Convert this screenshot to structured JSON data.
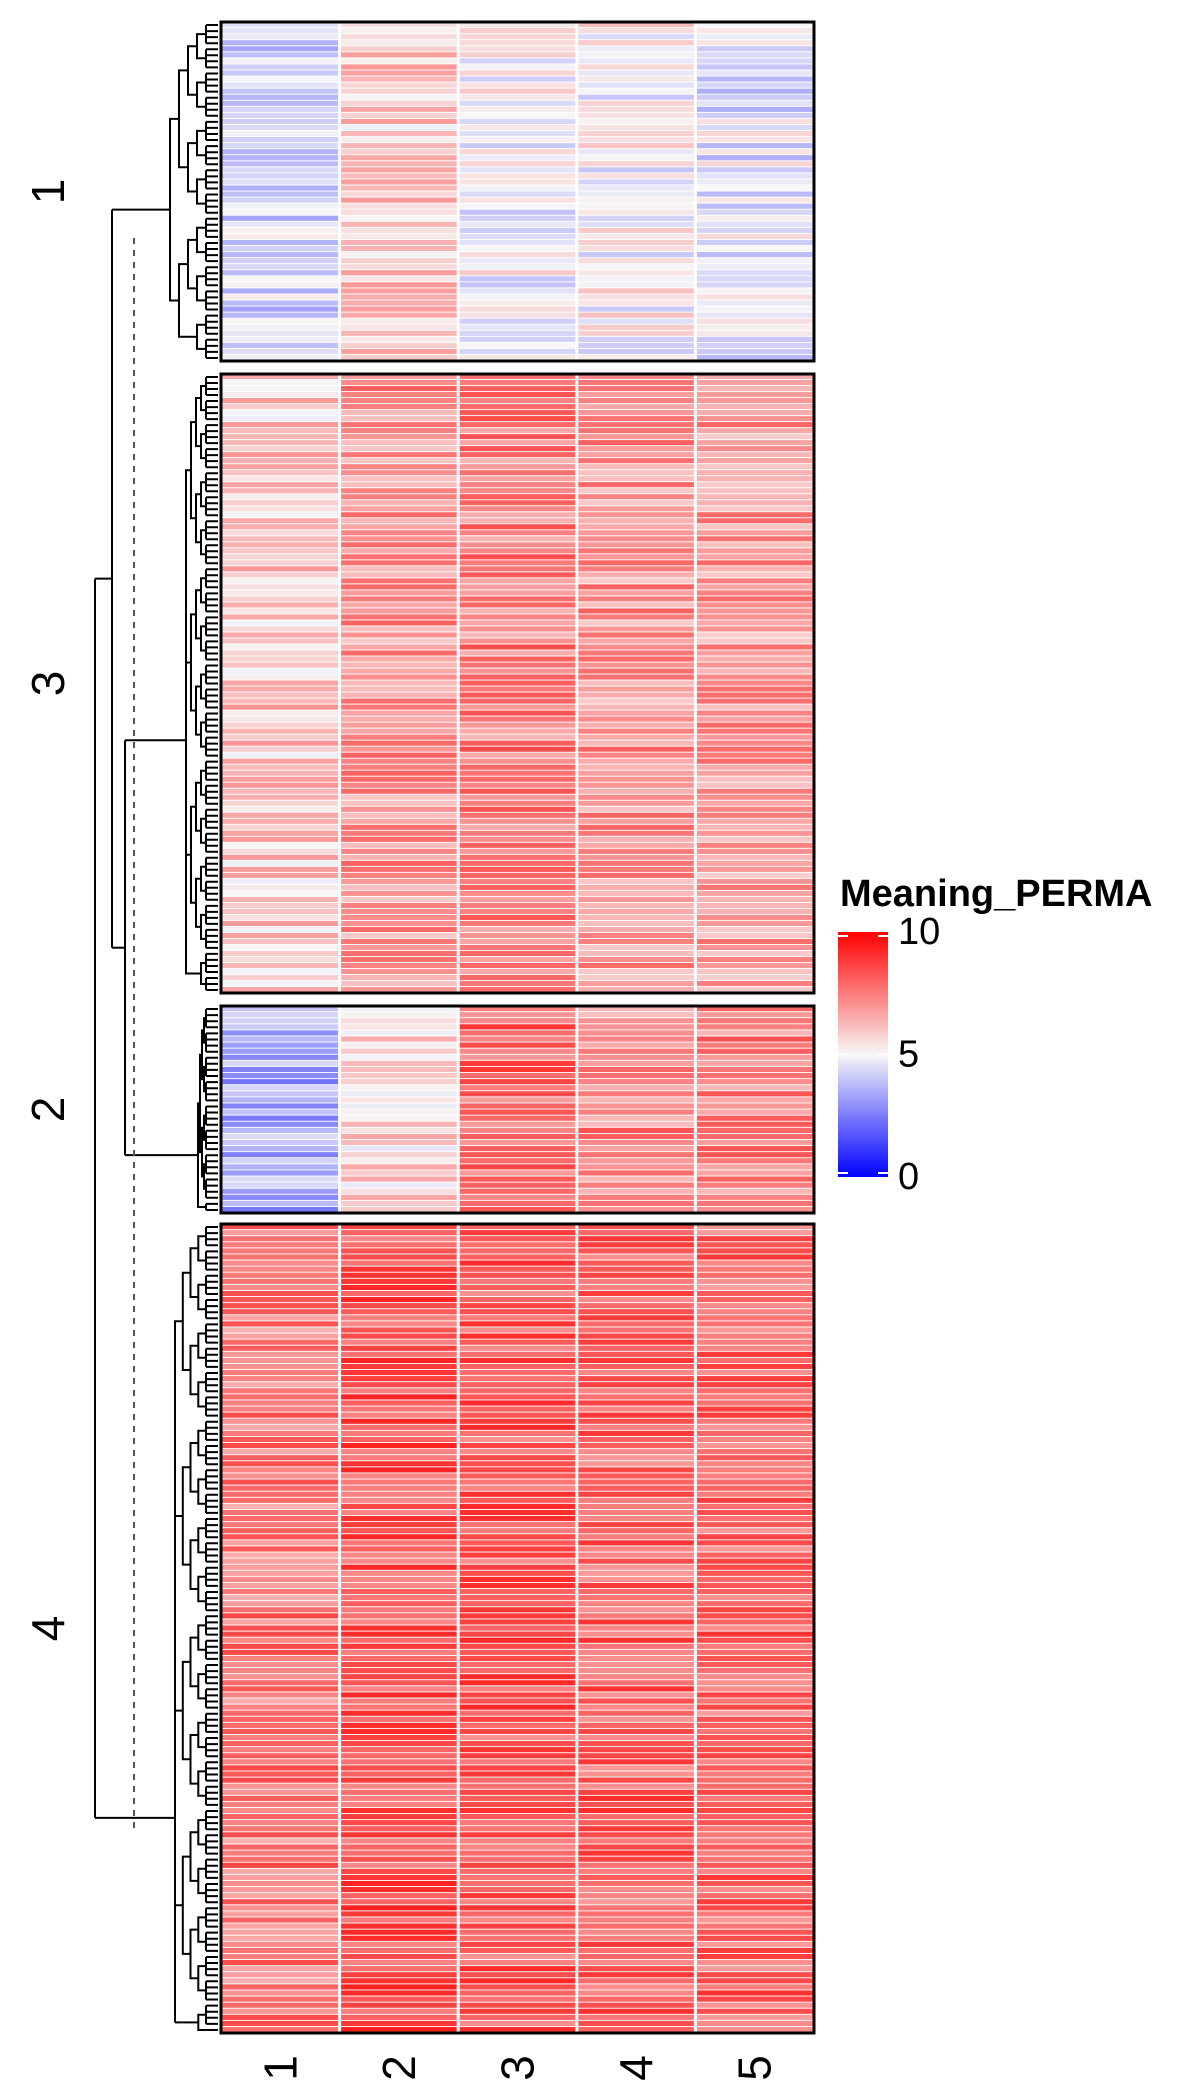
{
  "chart_data": {
    "type": "heatmap",
    "title": "",
    "xlabel": "",
    "ylabel": "",
    "columns": [
      "1",
      "2",
      "3",
      "4",
      "5"
    ],
    "row_clusters": [
      {
        "label": "1",
        "rows": 56,
        "column_means": [
          4.2,
          5.9,
          5.0,
          5.1,
          4.6
        ]
      },
      {
        "label": "3",
        "rows": 103,
        "column_means": [
          5.9,
          7.0,
          7.4,
          7.0,
          6.9
        ]
      },
      {
        "label": "2",
        "rows": 34,
        "column_means": [
          3.4,
          5.6,
          7.9,
          7.2,
          7.3
        ]
      },
      {
        "label": "4",
        "rows": 133,
        "column_means": [
          7.5,
          8.3,
          8.1,
          8.0,
          7.9
        ]
      }
    ],
    "legend": {
      "title": "Meaning_PERMA",
      "ticks": [
        0,
        5,
        10
      ],
      "range": [
        0,
        10
      ],
      "placement": "right",
      "colors": {
        "low": "#0000ff",
        "mid": "#f7f7f7",
        "high": "#ff0000"
      }
    },
    "dendrogram": {
      "side": "left",
      "cut_line": "dashed"
    },
    "grid": false
  }
}
